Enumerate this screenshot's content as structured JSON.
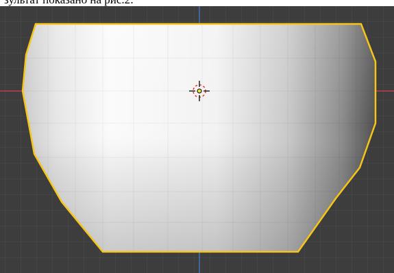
{
  "caption": "зультат показано на рис.2:"
}
